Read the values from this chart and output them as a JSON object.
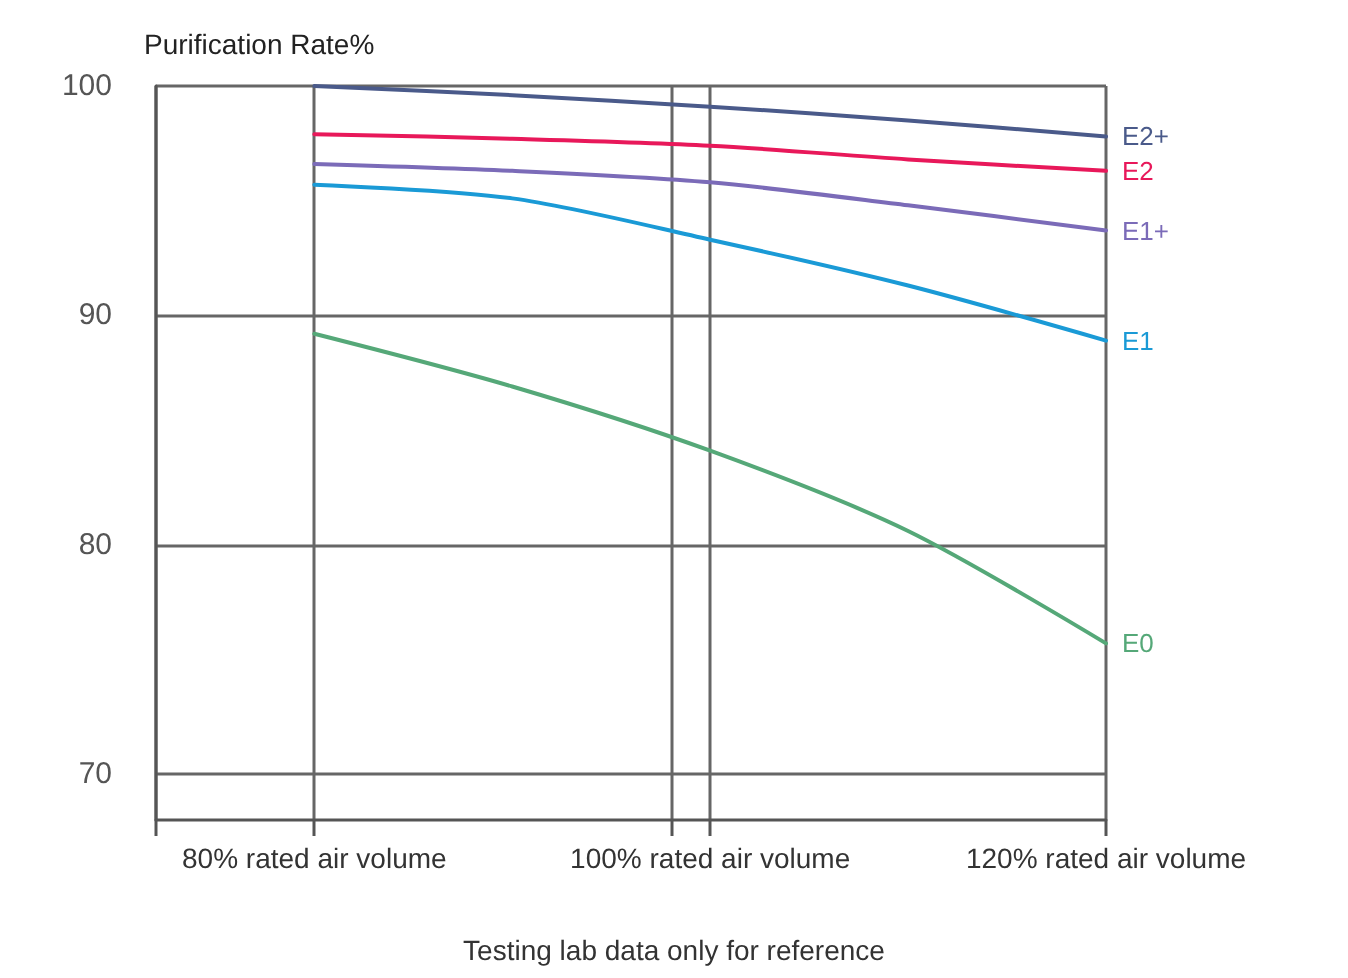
{
  "chart_data": {
    "type": "line",
    "ylabel": "Purification Rate%",
    "annotations": [
      "Testing lab data only for reference"
    ],
    "x": [
      80,
      90,
      100,
      110,
      120
    ],
    "series": [
      {
        "name": "E2+",
        "color": "#4a5a8a",
        "values": [
          100,
          99.6,
          99.1,
          98.5,
          97.8
        ]
      },
      {
        "name": "E2",
        "color": "#e8185a",
        "values": [
          97.9,
          97.7,
          97.4,
          96.8,
          96.3
        ]
      },
      {
        "name": "E1+",
        "color": "#7b6bb8",
        "values": [
          96.6,
          96.3,
          95.8,
          94.8,
          93.7
        ]
      },
      {
        "name": "E1",
        "color": "#1a9ad6",
        "values": [
          95.7,
          95.1,
          93.3,
          91.3,
          88.9
        ]
      },
      {
        "name": "E0",
        "color": "#55a878",
        "values": [
          89.2,
          86.9,
          84.1,
          80.6,
          75.7
        ]
      }
    ],
    "xlim": [
      72,
      120
    ],
    "xticks": [
      {
        "value": 72,
        "label": null
      },
      {
        "value": 80,
        "label": "80% rated air volume"
      },
      {
        "value": 98,
        "label": null
      },
      {
        "value": 100,
        "label": "100% rated air volume"
      },
      {
        "value": 120,
        "label": "120% rated air volume"
      }
    ],
    "ylim": [
      68,
      100
    ],
    "yticks": [
      70,
      80,
      90,
      100
    ],
    "grid": true,
    "legend": false,
    "marker": "none",
    "line_style": "solid"
  }
}
